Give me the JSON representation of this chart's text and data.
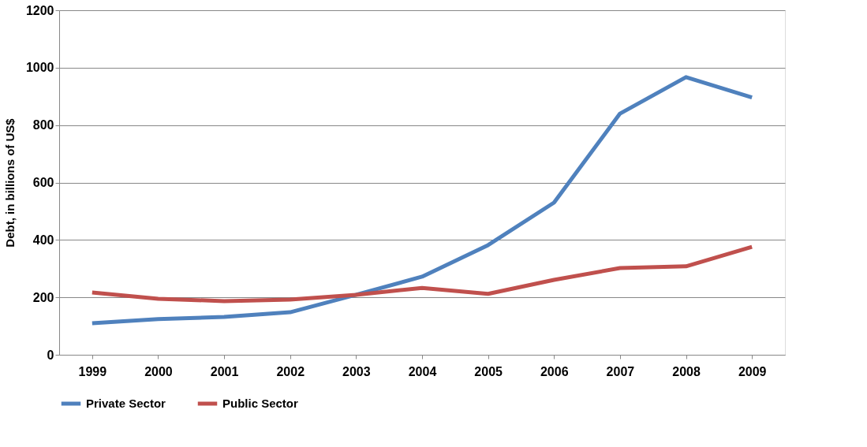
{
  "chart_data": {
    "type": "line",
    "ylabel": "Debt, in billions of US$",
    "categories": [
      "1999",
      "2000",
      "2001",
      "2002",
      "2003",
      "2004",
      "2005",
      "2006",
      "2007",
      "2008",
      "2009"
    ],
    "series": [
      {
        "name": "Private Sector",
        "color": "#4f81bd",
        "values": [
          110,
          124,
          132,
          148,
          209,
          272,
          382,
          530,
          840,
          967,
          896
        ]
      },
      {
        "name": "Public Sector",
        "color": "#c0504d",
        "values": [
          217,
          195,
          187,
          192,
          209,
          233,
          212,
          261,
          302,
          308,
          376
        ]
      }
    ],
    "ylim": [
      0,
      1200
    ],
    "yticks": [
      0,
      200,
      400,
      600,
      800,
      1000,
      1200
    ],
    "grid": "y",
    "legend": "bottom",
    "marker": "none",
    "line_style": "solid"
  }
}
